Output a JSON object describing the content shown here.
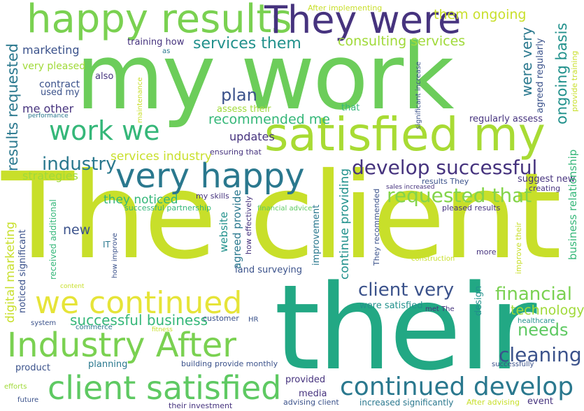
{
  "palette": {
    "lime": "#c8df2a",
    "yellow_green": "#e6e438",
    "green": "#6ccd5a",
    "green_light": "#7ad151",
    "teal_green": "#22a884",
    "teal": "#21918c",
    "blue_teal": "#2a788e",
    "slate_blue": "#3b528b",
    "purple": "#46337e",
    "dark_purple": "#440154"
  },
  "words": [
    {
      "text": "The client",
      "color": "#c8df2a"
    },
    {
      "text": "their",
      "color": "#22a884"
    },
    {
      "text": "my work",
      "color": "#6ccd5a"
    },
    {
      "text": "satisfied my",
      "color": "#a8db34"
    },
    {
      "text": "happy results",
      "color": "#7ad151"
    },
    {
      "text": "They were",
      "color": "#46337e"
    },
    {
      "text": "very happy",
      "color": "#2a788e"
    },
    {
      "text": "Industry After",
      "color": "#7ad151"
    },
    {
      "text": "client satisfied",
      "color": "#5ec962"
    },
    {
      "text": "we continued",
      "color": "#e6e438"
    },
    {
      "text": "continued develop",
      "color": "#2a788e"
    },
    {
      "text": "work we",
      "color": "#35b779"
    },
    {
      "text": "develop successful",
      "color": "#46337e"
    },
    {
      "text": "requested that",
      "color": "#84d44b"
    },
    {
      "text": "client very",
      "color": "#3b528b"
    },
    {
      "text": "cleaning",
      "color": "#3b528b"
    },
    {
      "text": "financial",
      "color": "#7ad151"
    },
    {
      "text": "industry",
      "color": "#2a788e"
    },
    {
      "text": "services them",
      "color": "#21918c"
    },
    {
      "text": "consulting services",
      "color": "#a0da39"
    },
    {
      "text": "plan",
      "color": "#3b528b"
    },
    {
      "text": "recommended me",
      "color": "#35b779"
    },
    {
      "text": "successful business",
      "color": "#35b779"
    },
    {
      "text": "needs",
      "color": "#5ec962"
    },
    {
      "text": "technology",
      "color": "#a0da39"
    },
    {
      "text": "them ongoing",
      "color": "#c8df2a"
    },
    {
      "text": "updates",
      "color": "#46337e"
    },
    {
      "text": "new",
      "color": "#3b528b"
    },
    {
      "text": "services industry",
      "color": "#c8df2a"
    },
    {
      "text": "they noticed",
      "color": "#35b779"
    },
    {
      "text": "strategies",
      "color": "#a0da39"
    },
    {
      "text": "marketing",
      "color": "#3b528b"
    },
    {
      "text": "very pleased",
      "color": "#a0da39"
    },
    {
      "text": "me other",
      "color": "#46337e"
    },
    {
      "text": "contract",
      "color": "#3b528b"
    },
    {
      "text": "used my",
      "color": "#3b528b"
    },
    {
      "text": "also",
      "color": "#46337e"
    },
    {
      "text": "training how",
      "color": "#46337e"
    },
    {
      "text": "as",
      "color": "#2a788e"
    },
    {
      "text": "After implementing",
      "color": "#c8df2a"
    },
    {
      "text": "assess their",
      "color": "#a0da39"
    },
    {
      "text": "that",
      "color": "#35b779"
    },
    {
      "text": "regularly assess",
      "color": "#46337e"
    },
    {
      "text": "ensuring that",
      "color": "#46337e"
    },
    {
      "text": "suggest new",
      "color": "#46337e"
    },
    {
      "text": "results They",
      "color": "#3b528b"
    },
    {
      "text": "sales increased",
      "color": "#46337e"
    },
    {
      "text": "creating",
      "color": "#46337e"
    },
    {
      "text": "my skills",
      "color": "#46337e"
    },
    {
      "text": "successful partnership",
      "color": "#35b779"
    },
    {
      "text": "financial advice",
      "color": "#5ec962"
    },
    {
      "text": "pleased results",
      "color": "#46337e"
    },
    {
      "text": "IT",
      "color": "#2a788e"
    },
    {
      "text": "more",
      "color": "#46337e"
    },
    {
      "text": "construction",
      "color": "#c8df2a"
    },
    {
      "text": "land surveying",
      "color": "#3b528b"
    },
    {
      "text": "were satisfied",
      "color": "#21918c"
    },
    {
      "text": "met The",
      "color": "#46337e"
    },
    {
      "text": "healthcare",
      "color": "#21918c"
    },
    {
      "text": "system",
      "color": "#3b528b"
    },
    {
      "text": "commerce",
      "color": "#2a788e"
    },
    {
      "text": "fitness",
      "color": "#c8df2a"
    },
    {
      "text": "customer",
      "color": "#3b528b"
    },
    {
      "text": "HR",
      "color": "#3b528b"
    },
    {
      "text": "product",
      "color": "#3b528b"
    },
    {
      "text": "planning",
      "color": "#2a788e"
    },
    {
      "text": "building",
      "color": "#3b528b"
    },
    {
      "text": "provide monthly",
      "color": "#3b528b"
    },
    {
      "text": "successfully",
      "color": "#3b528b"
    },
    {
      "text": "efforts",
      "color": "#a0da39"
    },
    {
      "text": "future",
      "color": "#3b528b"
    },
    {
      "text": "provided",
      "color": "#46337e"
    },
    {
      "text": "media",
      "color": "#46337e"
    },
    {
      "text": "their investment",
      "color": "#46337e"
    },
    {
      "text": "advising client",
      "color": "#3b528b"
    },
    {
      "text": "increased significantly",
      "color": "#2a788e"
    },
    {
      "text": "After advising",
      "color": "#c8df2a"
    },
    {
      "text": "event",
      "color": "#46337e"
    },
    {
      "text": "performance",
      "color": "#2a788e"
    },
    {
      "text": "content",
      "color": "#c8df2a"
    },
    {
      "text": "results requested",
      "color": "#2a788e"
    },
    {
      "text": "digital marketing",
      "color": "#c8df2a"
    },
    {
      "text": "noticed significant",
      "color": "#3b528b"
    },
    {
      "text": "received additional",
      "color": "#35b779"
    },
    {
      "text": "how improve",
      "color": "#3b528b"
    },
    {
      "text": "maintenance",
      "color": "#c8df2a"
    },
    {
      "text": "website",
      "color": "#21918c"
    },
    {
      "text": "agreed provide",
      "color": "#2a788e"
    },
    {
      "text": "how effectively",
      "color": "#46337e"
    },
    {
      "text": "improvement",
      "color": "#2a788e"
    },
    {
      "text": "continue providing",
      "color": "#21918c"
    },
    {
      "text": "They recommended",
      "color": "#3b528b"
    },
    {
      "text": "design",
      "color": "#21918c"
    },
    {
      "text": "significant increase",
      "color": "#3b528b"
    },
    {
      "text": "were very",
      "color": "#2a788e"
    },
    {
      "text": "ongoing basis",
      "color": "#21918c"
    },
    {
      "text": "agreed regularly",
      "color": "#3b528b"
    },
    {
      "text": "business relationship",
      "color": "#35b779"
    },
    {
      "text": "improve their",
      "color": "#c8df2a"
    },
    {
      "text": "provide training",
      "color": "#c8df2a"
    }
  ]
}
